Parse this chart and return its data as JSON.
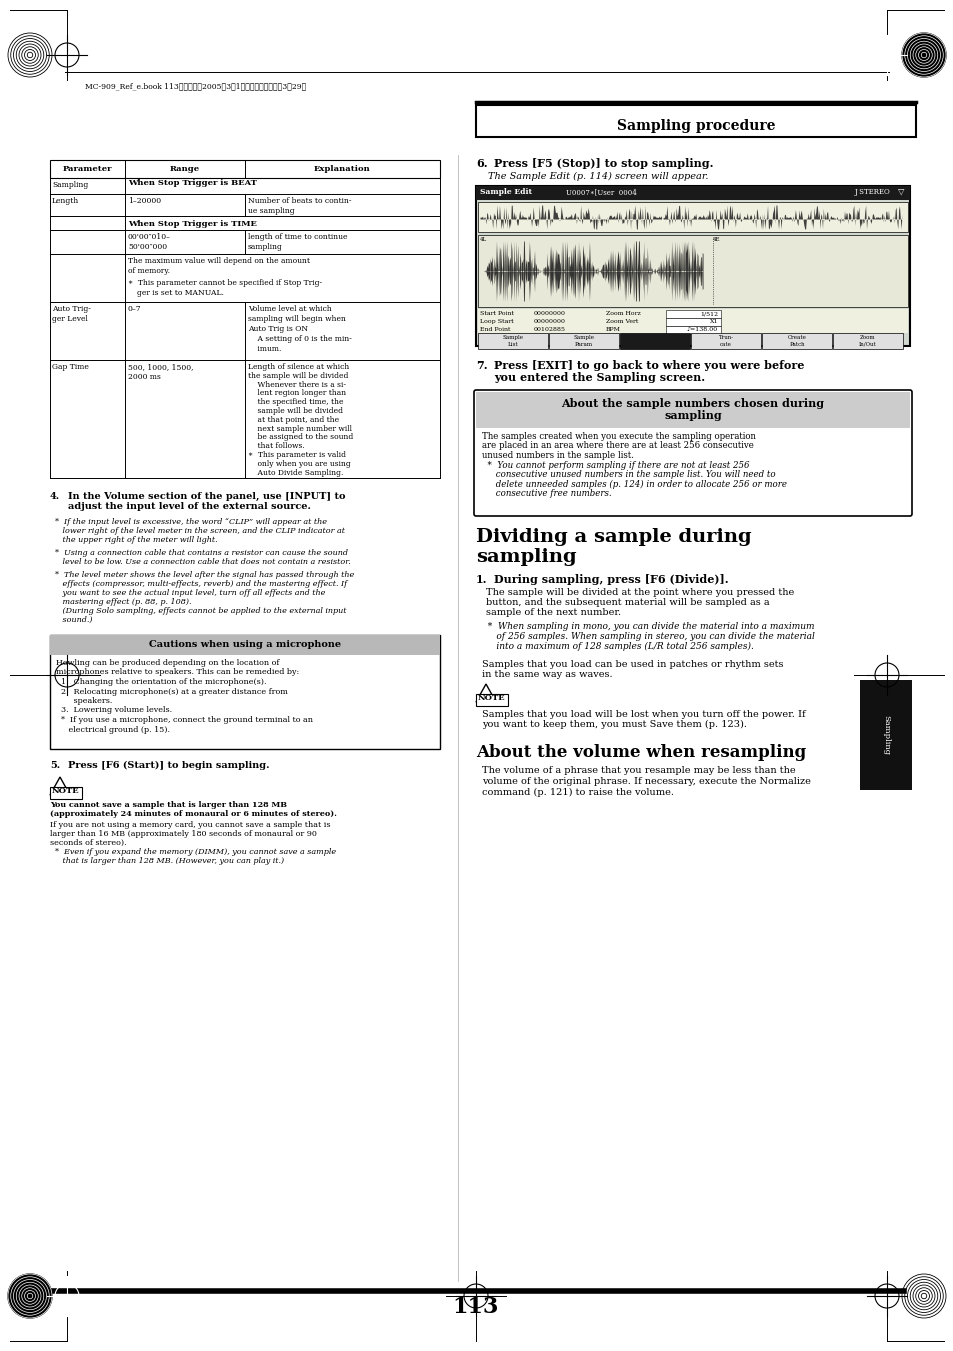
{
  "page_bg": "#ffffff",
  "page_width": 9.54,
  "page_height": 13.51,
  "dpi": 100,
  "header_text": "MC-909_Ref_e.book 113ページ・・2005年3月1日・火曜日・・午後3時29分",
  "section_title": "Sampling procedure",
  "page_number": "113",
  "tab_label": "Sampling",
  "caution_title": "Cautions when using a microphone",
  "sample_numbers_title_line1": "About the sample numbers chosen during",
  "sample_numbers_title_line2": "sampling",
  "dividing_title_line1": "Dividing a sample during",
  "dividing_title_line2": "sampling",
  "resampling_title": "About the volume when resampling"
}
